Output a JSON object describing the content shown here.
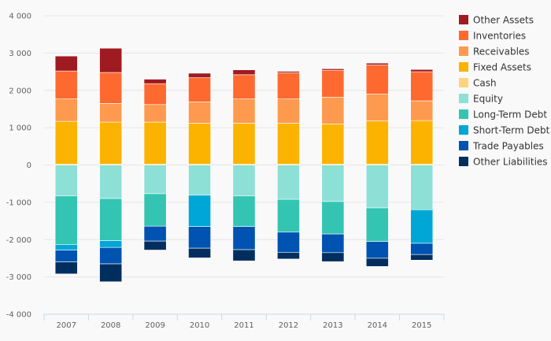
{
  "chart_data": {
    "type": "bar",
    "stacked": true,
    "title": "",
    "xlabel": "",
    "ylabel": "",
    "ylim": [
      -4000,
      4000
    ],
    "yticks": [
      4000,
      3000,
      2000,
      1000,
      0,
      -1000,
      -2000,
      -3000,
      -4000
    ],
    "ytick_labels": [
      "4 000",
      "3 000",
      "2 000",
      "1 000",
      "0",
      "-1 000",
      "-2 000",
      "-3 000",
      "-4 000"
    ],
    "categories": [
      "2007",
      "2008",
      "2009",
      "2010",
      "2011",
      "2012",
      "2013",
      "2014",
      "2015"
    ],
    "grid": true,
    "legend_position": "right",
    "series": [
      {
        "name": "Other Assets",
        "color": "#a01a21",
        "values": [
          400,
          650,
          120,
          120,
          130,
          40,
          40,
          50,
          60
        ]
      },
      {
        "name": "Inventories",
        "color": "#fe6930",
        "values": [
          750,
          830,
          560,
          650,
          650,
          700,
          720,
          780,
          780
        ]
      },
      {
        "name": "Receivables",
        "color": "#fd9a4f",
        "values": [
          600,
          500,
          470,
          570,
          650,
          650,
          720,
          720,
          530
        ]
      },
      {
        "name": "Fixed Assets",
        "color": "#fbb300",
        "values": [
          1150,
          1130,
          1130,
          1100,
          1100,
          1100,
          1080,
          1160,
          1170
        ]
      },
      {
        "name": "Cash",
        "color": "#fed37d",
        "values": [
          20,
          20,
          20,
          20,
          20,
          20,
          20,
          20,
          20
        ]
      },
      {
        "name": "Equity",
        "color": "#8de0d6",
        "values": [
          -830,
          -900,
          -770,
          -810,
          -830,
          -920,
          -980,
          -1150,
          -1200
        ]
      },
      {
        "name": "Long-Term Debt",
        "color": "#33c5b1",
        "values": [
          -1300,
          -1130,
          -870,
          0,
          -820,
          -880,
          -870,
          -900,
          0
        ]
      },
      {
        "name": "Short-Term Debt",
        "color": "#00a6d6",
        "values": [
          -150,
          -180,
          0,
          -840,
          0,
          0,
          0,
          0,
          -900
        ]
      },
      {
        "name": "Trade Payables",
        "color": "#0053b1",
        "values": [
          -320,
          -440,
          -400,
          -580,
          -620,
          -540,
          -500,
          -450,
          -300
        ]
      },
      {
        "name": "Other Liabilities",
        "color": "#002f5f",
        "values": [
          -320,
          -480,
          -240,
          -260,
          -300,
          -180,
          -240,
          -220,
          -150
        ]
      }
    ]
  }
}
